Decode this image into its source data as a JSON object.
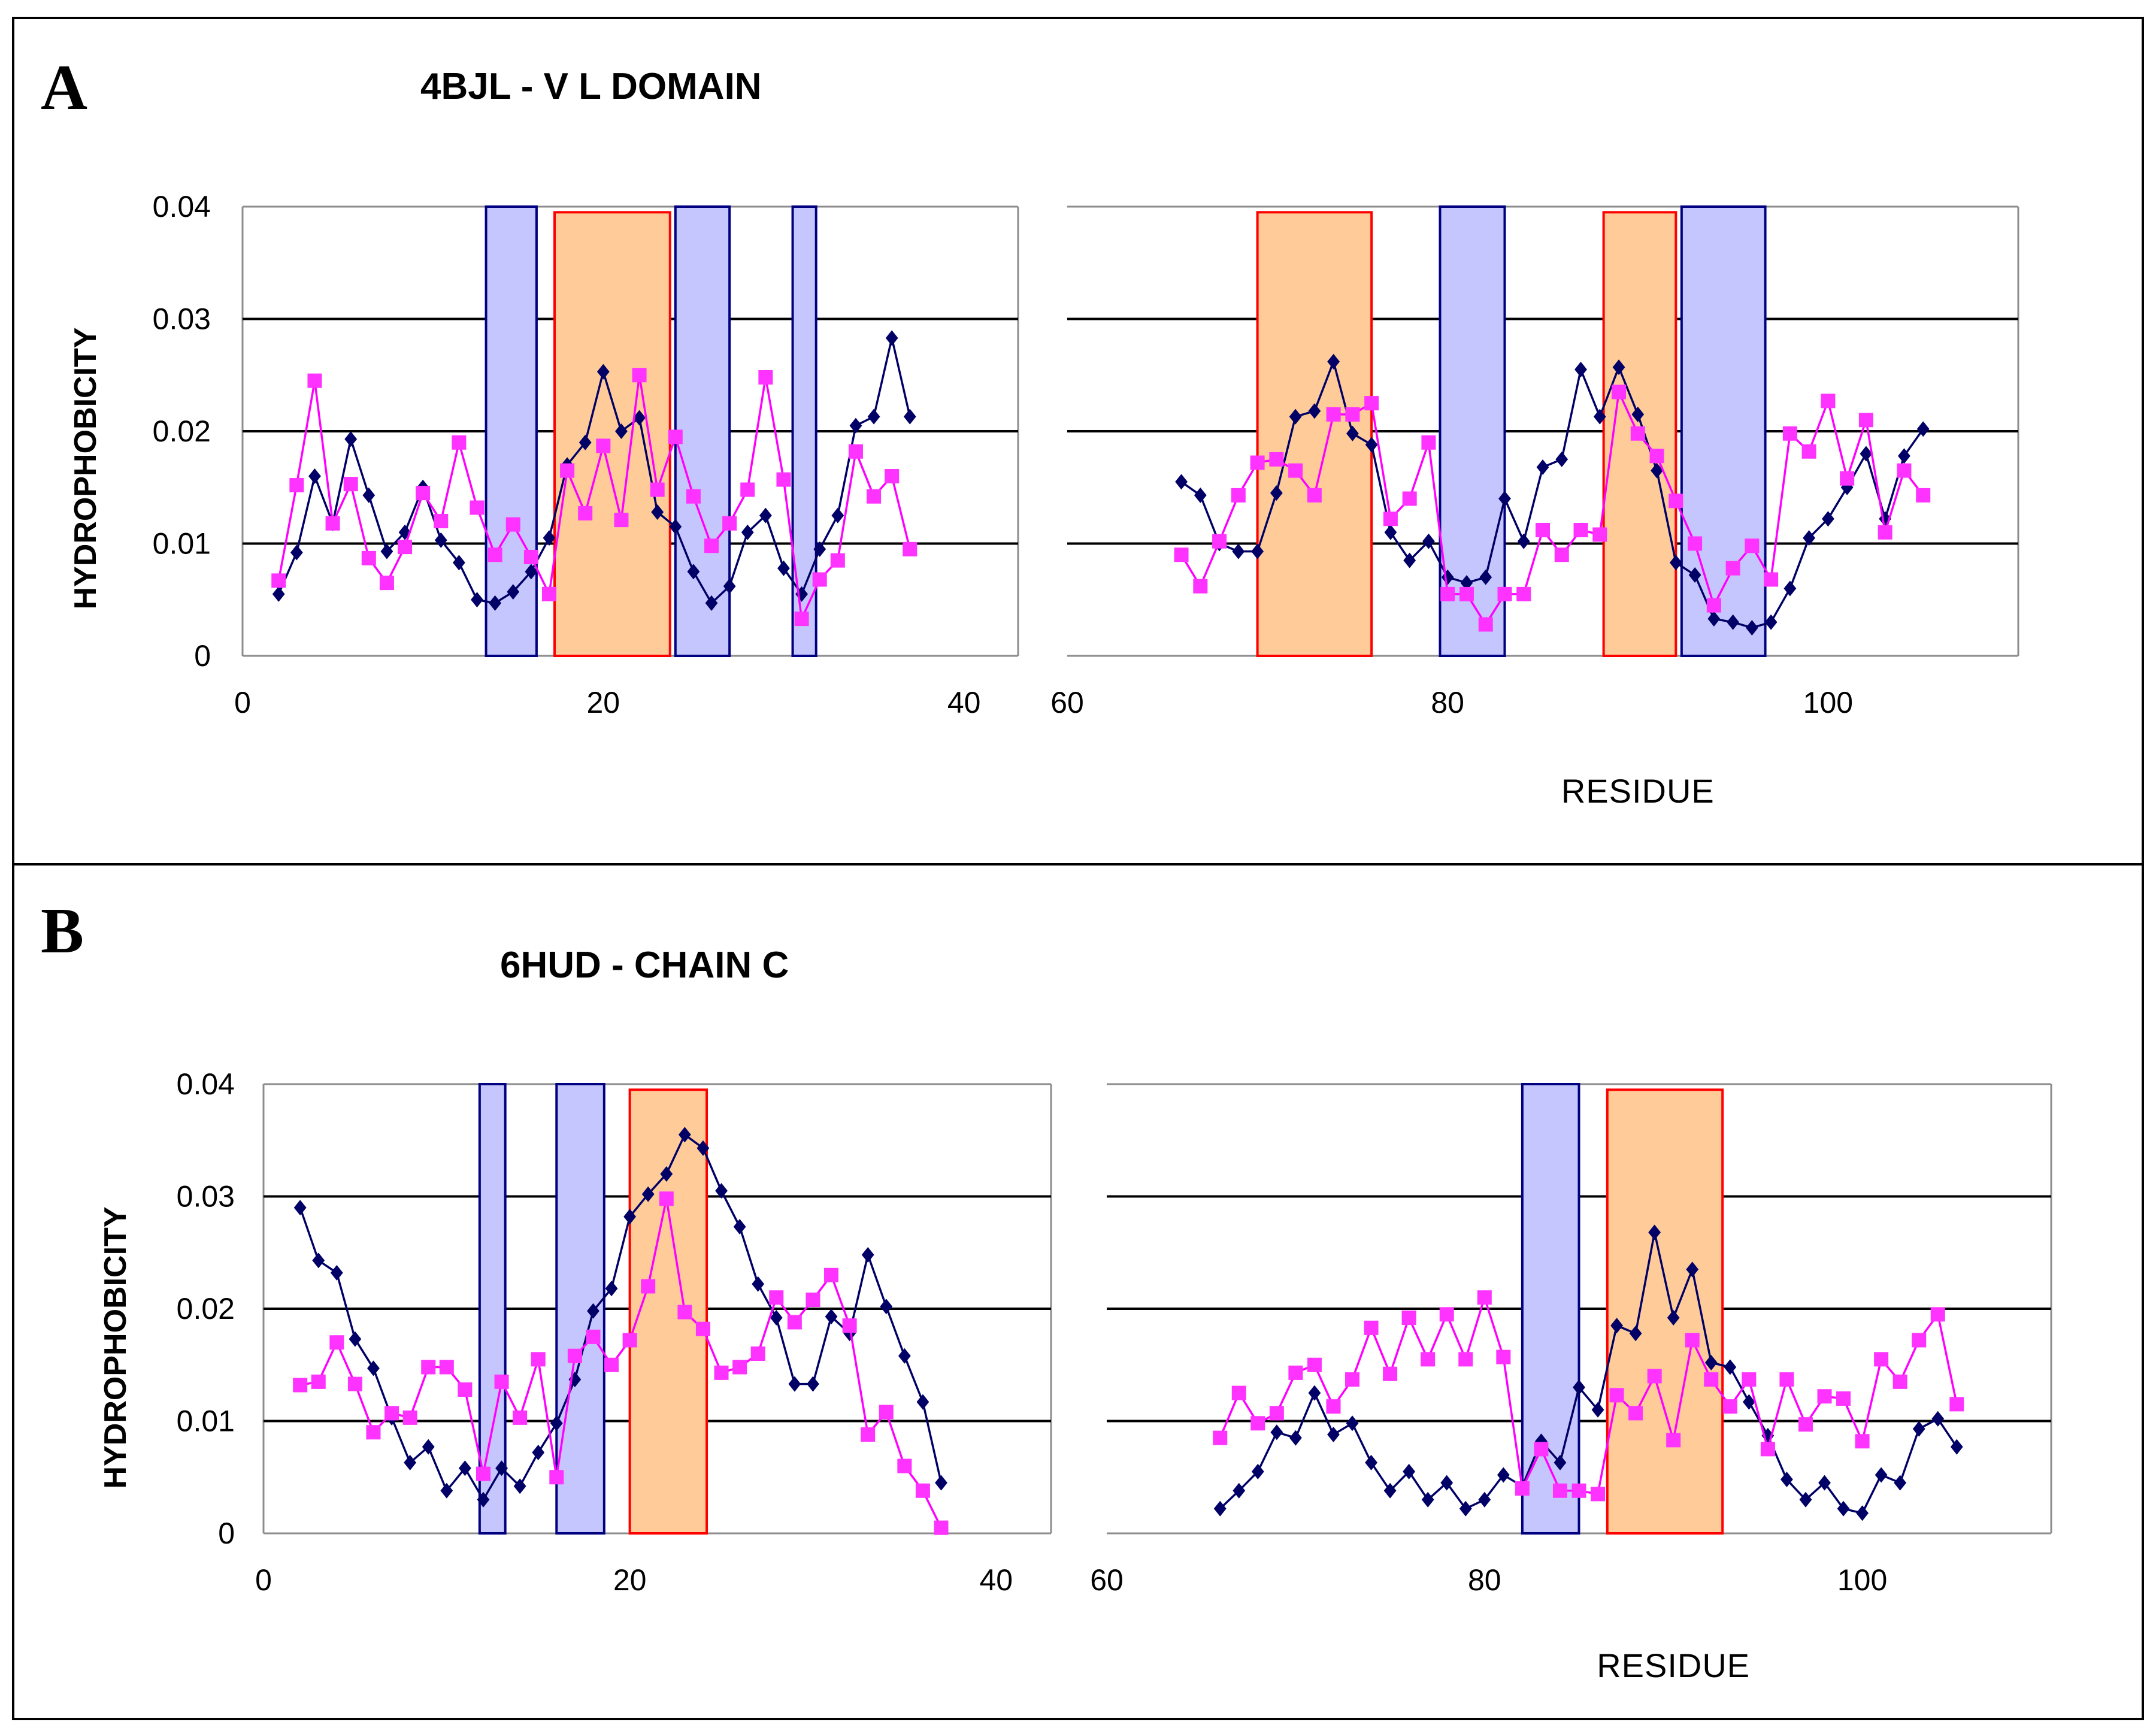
{
  "figure": {
    "panels": [
      {
        "letter": "A",
        "title": "4BJL - V L DOMAIN",
        "ylabel": "HYDROPHOBICITY",
        "xlabel": "RESIDUE"
      },
      {
        "letter": "B",
        "title": "6HUD - CHAIN C",
        "ylabel": "HYDROPHOBICITY",
        "xlabel": "RESIDUE"
      }
    ],
    "colors": {
      "series_navy": "#000066",
      "series_magenta": "#ff33ff",
      "blue_region_fill": "#c6c6ff",
      "blue_region_edge": "#000080",
      "orange_region_fill": "#ffcc99",
      "orange_region_edge": "#ff0000"
    }
  },
  "chart_data": [
    {
      "panel": "A",
      "part": "left",
      "type": "line",
      "xlim": [
        0,
        43
      ],
      "ylim": [
        0,
        0.04
      ],
      "x_ticks": [
        0,
        20,
        40
      ],
      "y_ticks": [
        0,
        0.01,
        0.02,
        0.03,
        0.04
      ],
      "y_tick_labels": [
        "0",
        "0.01",
        "0.02",
        "0.03",
        "0.04"
      ],
      "blue_regions": [
        [
          13.5,
          16.3
        ],
        [
          24,
          27
        ],
        [
          30.5,
          31.8
        ]
      ],
      "orange_regions": [
        [
          17.3,
          23.7
        ]
      ],
      "series": [
        {
          "name": "navy",
          "x": [
            2,
            3,
            4,
            5,
            6,
            7,
            8,
            9,
            10,
            11,
            12,
            13,
            14,
            15,
            16,
            17,
            18,
            19,
            20,
            21,
            22,
            23,
            24,
            25,
            26,
            27,
            28,
            29,
            30,
            31,
            32,
            33,
            34,
            35,
            36,
            37
          ],
          "values": [
            0.0055,
            0.0092,
            0.016,
            0.0118,
            0.0193,
            0.0143,
            0.0093,
            0.011,
            0.015,
            0.0103,
            0.0083,
            0.005,
            0.0047,
            0.0057,
            0.0075,
            0.0105,
            0.017,
            0.019,
            0.0253,
            0.02,
            0.0212,
            0.0128,
            0.0115,
            0.0075,
            0.0047,
            0.0062,
            0.011,
            0.0125,
            0.0078,
            0.0055,
            0.0095,
            0.0125,
            0.0205,
            0.0213,
            0.0283,
            0.0213
          ]
        },
        {
          "name": "magenta",
          "x": [
            2,
            3,
            4,
            5,
            6,
            7,
            8,
            9,
            10,
            11,
            12,
            13,
            14,
            15,
            16,
            17,
            18,
            19,
            20,
            21,
            22,
            23,
            24,
            25,
            26,
            27,
            28,
            29,
            30,
            31,
            32,
            33,
            34,
            35,
            36,
            37
          ],
          "values": [
            0.0067,
            0.0152,
            0.0245,
            0.0118,
            0.0153,
            0.0087,
            0.0065,
            0.0097,
            0.0145,
            0.012,
            0.019,
            0.0132,
            0.009,
            0.0117,
            0.0088,
            0.0055,
            0.0165,
            0.0127,
            0.0187,
            0.0121,
            0.025,
            0.0148,
            0.0195,
            0.0142,
            0.0098,
            0.0118,
            0.0148,
            0.0248,
            0.0157,
            0.0033,
            0.0068,
            0.0085,
            0.0182,
            0.0142,
            0.016,
            0.0095
          ]
        }
      ]
    },
    {
      "panel": "A",
      "part": "right",
      "type": "line",
      "xlim": [
        60,
        110
      ],
      "ylim": [
        0,
        0.04
      ],
      "x_ticks": [
        60,
        80,
        100
      ],
      "xlabel": "RESIDUE",
      "blue_regions": [
        [
          79.6,
          83
        ],
        [
          92.3,
          96.7
        ]
      ],
      "orange_regions": [
        [
          70,
          76
        ],
        [
          88.2,
          92
        ]
      ],
      "series": [
        {
          "name": "navy",
          "x": [
            66,
            67,
            68,
            69,
            70,
            71,
            72,
            73,
            74,
            75,
            76,
            77,
            78,
            79,
            80,
            81,
            82,
            83,
            84,
            85,
            86,
            87,
            88,
            89,
            90,
            91,
            92,
            93,
            94,
            95,
            96,
            97,
            98,
            99,
            100,
            101,
            102,
            103,
            104,
            105
          ],
          "values": [
            0.0155,
            0.0143,
            0.01,
            0.0093,
            0.0093,
            0.0145,
            0.0213,
            0.0218,
            0.0262,
            0.0198,
            0.0188,
            0.011,
            0.0085,
            0.0102,
            0.007,
            0.0065,
            0.007,
            0.014,
            0.0102,
            0.0168,
            0.0175,
            0.0255,
            0.0213,
            0.0257,
            0.0215,
            0.0165,
            0.0083,
            0.0072,
            0.0033,
            0.003,
            0.0025,
            0.003,
            0.006,
            0.0105,
            0.0122,
            0.015,
            0.018,
            0.0122,
            0.0178,
            0.0202
          ]
        },
        {
          "name": "magenta",
          "x": [
            66,
            67,
            68,
            69,
            70,
            71,
            72,
            73,
            74,
            75,
            76,
            77,
            78,
            79,
            80,
            81,
            82,
            83,
            84,
            85,
            86,
            87,
            88,
            89,
            90,
            91,
            92,
            93,
            94,
            95,
            96,
            97,
            98,
            99,
            100,
            101,
            102,
            103,
            104,
            105
          ],
          "values": [
            0.009,
            0.0062,
            0.0102,
            0.0143,
            0.0172,
            0.0175,
            0.0165,
            0.0143,
            0.0215,
            0.0215,
            0.0225,
            0.0122,
            0.014,
            0.019,
            0.0055,
            0.0055,
            0.0028,
            0.0055,
            0.0055,
            0.0112,
            0.009,
            0.0112,
            0.0108,
            0.0235,
            0.0198,
            0.0178,
            0.0138,
            0.01,
            0.0045,
            0.0078,
            0.0098,
            0.0068,
            0.0198,
            0.0182,
            0.0227,
            0.0158,
            0.021,
            0.011,
            0.0165,
            0.0143
          ]
        }
      ]
    },
    {
      "panel": "B",
      "part": "left",
      "type": "line",
      "xlim": [
        0,
        43
      ],
      "ylim": [
        0,
        0.04
      ],
      "x_ticks": [
        0,
        20,
        40
      ],
      "y_ticks": [
        0,
        0.01,
        0.02,
        0.03,
        0.04
      ],
      "y_tick_labels": [
        "0",
        "0.01",
        "0.02",
        "0.03",
        "0.04"
      ],
      "blue_regions": [
        [
          11.8,
          13.2
        ],
        [
          16,
          18.6
        ]
      ],
      "orange_regions": [
        [
          20,
          24.2
        ]
      ],
      "series": [
        {
          "name": "navy",
          "x": [
            2,
            3,
            4,
            5,
            6,
            7,
            8,
            9,
            10,
            11,
            12,
            13,
            14,
            15,
            16,
            17,
            18,
            19,
            20,
            21,
            22,
            23,
            24,
            25,
            26,
            27,
            28,
            29,
            30,
            31,
            32,
            33,
            34,
            35,
            36,
            37
          ],
          "values": [
            0.029,
            0.0243,
            0.0232,
            0.0173,
            0.0147,
            0.0103,
            0.0063,
            0.0077,
            0.0038,
            0.0058,
            0.003,
            0.0058,
            0.0042,
            0.0072,
            0.0098,
            0.0137,
            0.0198,
            0.0218,
            0.0282,
            0.0302,
            0.032,
            0.0355,
            0.0343,
            0.0305,
            0.0273,
            0.0222,
            0.0192,
            0.0133,
            0.0133,
            0.0193,
            0.0178,
            0.0248,
            0.0202,
            0.0158,
            0.0117,
            0.0045
          ]
        },
        {
          "name": "magenta",
          "x": [
            2,
            3,
            4,
            5,
            6,
            7,
            8,
            9,
            10,
            11,
            12,
            13,
            14,
            15,
            16,
            17,
            18,
            19,
            20,
            21,
            22,
            23,
            24,
            25,
            26,
            27,
            28,
            29,
            30,
            31,
            32,
            33,
            34,
            35,
            36,
            37
          ],
          "values": [
            0.0132,
            0.0135,
            0.017,
            0.0133,
            0.009,
            0.0107,
            0.0103,
            0.0148,
            0.0148,
            0.0128,
            0.0053,
            0.0135,
            0.0103,
            0.0155,
            0.005,
            0.0158,
            0.0175,
            0.015,
            0.0172,
            0.022,
            0.0298,
            0.0197,
            0.0182,
            0.0143,
            0.0148,
            0.016,
            0.021,
            0.0188,
            0.0208,
            0.023,
            0.0185,
            0.0088,
            0.0108,
            0.006,
            0.0038,
            0.0005
          ]
        }
      ]
    },
    {
      "panel": "B",
      "part": "right",
      "type": "line",
      "xlim": [
        60,
        110
      ],
      "ylim": [
        0,
        0.04
      ],
      "x_ticks": [
        60,
        80,
        100
      ],
      "xlabel": "RESIDUE",
      "blue_regions": [
        [
          82,
          85
        ]
      ],
      "orange_regions": [
        [
          86.5,
          92.6
        ]
      ],
      "series": [
        {
          "name": "navy",
          "x": [
            66,
            67,
            68,
            69,
            70,
            71,
            72,
            73,
            74,
            75,
            76,
            77,
            78,
            79,
            80,
            81,
            82,
            83,
            84,
            85,
            86,
            87,
            88,
            89,
            90,
            91,
            92,
            93,
            94,
            95,
            96,
            97,
            98,
            99,
            100,
            101,
            102,
            103,
            104,
            105
          ],
          "values": [
            0.0022,
            0.0038,
            0.0055,
            0.009,
            0.0085,
            0.0125,
            0.0088,
            0.0098,
            0.0063,
            0.0038,
            0.0055,
            0.003,
            0.0045,
            0.0022,
            0.003,
            0.0052,
            0.0042,
            0.0082,
            0.0063,
            0.013,
            0.011,
            0.0185,
            0.0178,
            0.0268,
            0.0192,
            0.0235,
            0.0152,
            0.0148,
            0.0117,
            0.0087,
            0.0048,
            0.003,
            0.0045,
            0.0022,
            0.0018,
            0.0052,
            0.0045,
            0.0093,
            0.0102,
            0.0077
          ]
        },
        {
          "name": "magenta",
          "x": [
            66,
            67,
            68,
            69,
            70,
            71,
            72,
            73,
            74,
            75,
            76,
            77,
            78,
            79,
            80,
            81,
            82,
            83,
            84,
            85,
            86,
            87,
            88,
            89,
            90,
            91,
            92,
            93,
            94,
            95,
            96,
            97,
            98,
            99,
            100,
            101,
            102,
            103,
            104,
            105
          ],
          "values": [
            0.0085,
            0.0125,
            0.0098,
            0.0107,
            0.0143,
            0.015,
            0.0113,
            0.0137,
            0.0183,
            0.0142,
            0.0192,
            0.0155,
            0.0195,
            0.0155,
            0.021,
            0.0157,
            0.004,
            0.0075,
            0.0038,
            0.0038,
            0.0035,
            0.0123,
            0.0107,
            0.014,
            0.0083,
            0.0172,
            0.0137,
            0.0113,
            0.0137,
            0.0075,
            0.0137,
            0.0097,
            0.0122,
            0.012,
            0.0082,
            0.0155,
            0.0135,
            0.0172,
            0.0195,
            0.0115
          ]
        }
      ]
    }
  ]
}
